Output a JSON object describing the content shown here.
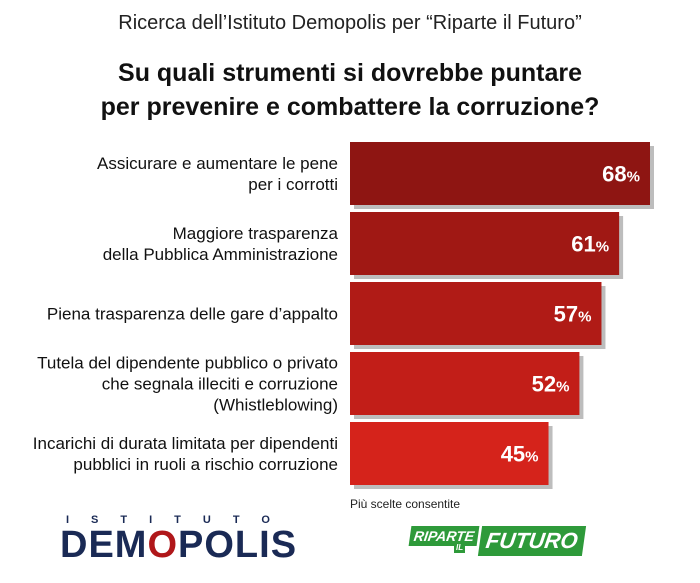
{
  "header": {
    "subtitle": "Ricerca dell’Istituto Demopolis per “Riparte il Futuro”",
    "title_line1": "Su quali strumenti si dovrebbe puntare",
    "title_line2": "per prevenire e combattere la corruzione?"
  },
  "chart_data": {
    "type": "bar",
    "orientation": "horizontal",
    "categories": [
      [
        "Assicurare e aumentare le pene",
        "per i corrotti"
      ],
      [
        "Maggiore trasparenza",
        "della Pubblica Amministrazione"
      ],
      [
        "Piena trasparenza delle gare d’appalto"
      ],
      [
        "Tutela del dipendente pubblico o privato",
        "che segnala illeciti e corruzione",
        "(Whistleblowing)"
      ],
      [
        "Incarichi di durata limitata per dipendenti",
        "pubblici in ruoli a rischio corruzione"
      ]
    ],
    "values": [
      68,
      61,
      57,
      52,
      45
    ],
    "value_labels": [
      "68",
      "61",
      "57",
      "52",
      "45"
    ],
    "unit": "%",
    "bar_colors": [
      "#8e1512",
      "#a01814",
      "#b01b16",
      "#c21e18",
      "#d5231b"
    ],
    "xlim": [
      0,
      68
    ]
  },
  "note": "Più scelte consentite",
  "logos": {
    "left_top": "ISTITUTO",
    "left_main_a": "DEM",
    "left_main_o": "O",
    "left_main_b": "POLIS",
    "right_a": "RIPARTE",
    "right_b": "IL",
    "right_c": "FUTURO"
  }
}
